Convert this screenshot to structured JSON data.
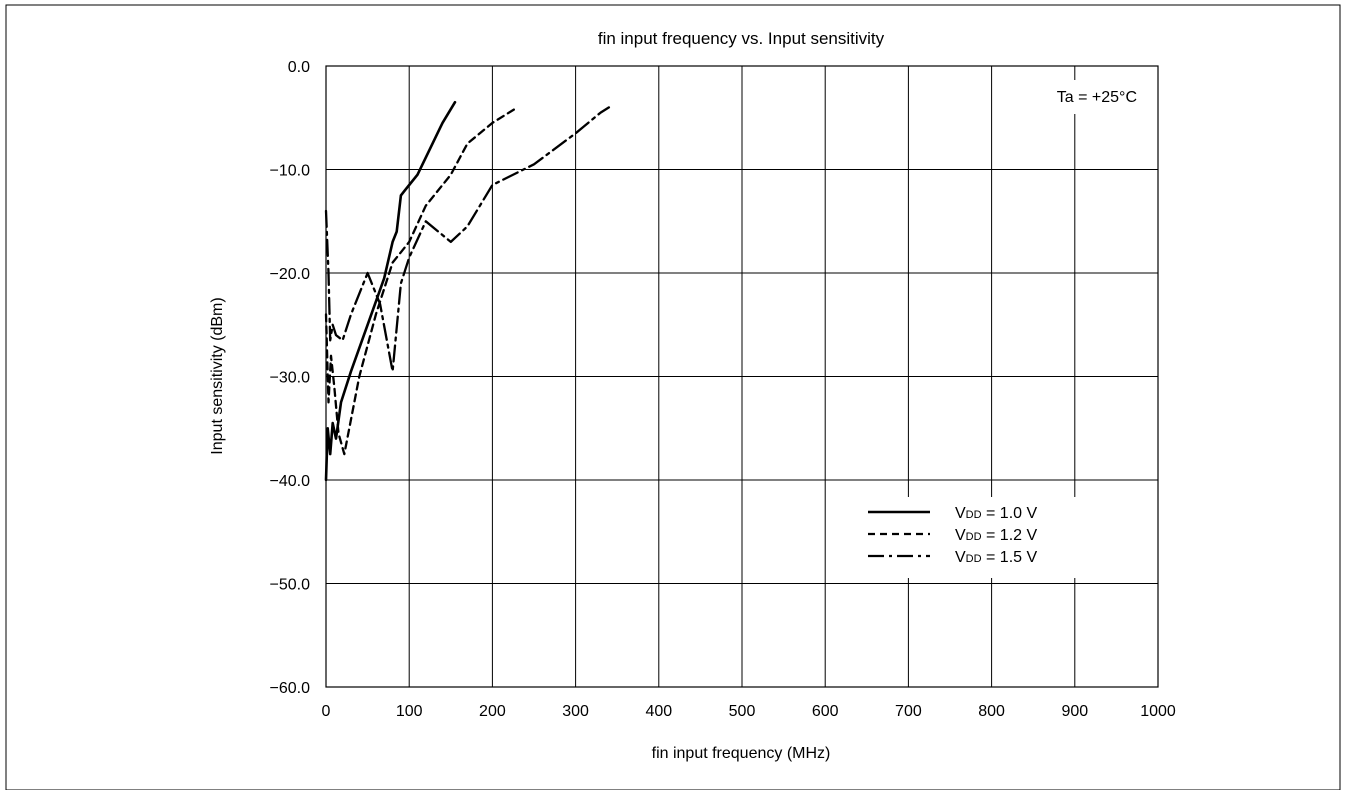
{
  "chart_data": {
    "type": "line",
    "title": "fin input frequency vs. Input sensitivity",
    "xlabel": "fin input frequency (MHz)",
    "ylabel": "Input sensitivity (dBm)",
    "xlim": [
      0,
      1000
    ],
    "ylim": [
      -60,
      0
    ],
    "x_ticks": [
      "0",
      "100",
      "200",
      "300",
      "400",
      "500",
      "600",
      "700",
      "800",
      "900",
      "1000"
    ],
    "y_ticks": [
      "0.0",
      "−10.0",
      "−20.0",
      "−30.0",
      "−40.0",
      "−50.0",
      "−60.0"
    ],
    "grid": true,
    "annotation": "Ta = +25°C",
    "legend_position": "lower-right",
    "series": [
      {
        "name": "VDD = 1.0 V",
        "name_main": "V",
        "name_sub": "DD",
        "name_rest": " = 1.0 V",
        "dash": "solid",
        "points": [
          [
            0,
            -40.0
          ],
          [
            2,
            -35.0
          ],
          [
            5,
            -37.5
          ],
          [
            8,
            -34.5
          ],
          [
            12,
            -36.0
          ],
          [
            18,
            -32.5
          ],
          [
            30,
            -29.5
          ],
          [
            50,
            -25.0
          ],
          [
            70,
            -20.5
          ],
          [
            80,
            -17.0
          ],
          [
            85,
            -16.0
          ],
          [
            90,
            -12.5
          ],
          [
            95,
            -12.0
          ],
          [
            100,
            -11.5
          ],
          [
            110,
            -10.5
          ],
          [
            125,
            -8.0
          ],
          [
            140,
            -5.5
          ],
          [
            155,
            -3.5
          ]
        ]
      },
      {
        "name": "VDD = 1.2 V",
        "name_main": "V",
        "name_sub": "DD",
        "name_rest": " = 1.2 V",
        "dash": "dashed",
        "points": [
          [
            0,
            -24.0
          ],
          [
            3,
            -32.5
          ],
          [
            6,
            -28.0
          ],
          [
            10,
            -31.0
          ],
          [
            15,
            -35.5
          ],
          [
            22,
            -37.5
          ],
          [
            40,
            -30.0
          ],
          [
            60,
            -24.0
          ],
          [
            80,
            -19.0
          ],
          [
            100,
            -17.0
          ],
          [
            120,
            -13.5
          ],
          [
            150,
            -10.5
          ],
          [
            170,
            -7.5
          ],
          [
            200,
            -5.5
          ],
          [
            230,
            -4.0
          ]
        ]
      },
      {
        "name": "VDD = 1.5 V",
        "name_main": "V",
        "name_sub": "DD",
        "name_rest": " = 1.5 V",
        "dash": "dashdot",
        "points": [
          [
            0,
            -14.0
          ],
          [
            3,
            -20.0
          ],
          [
            5,
            -26.5
          ],
          [
            8,
            -25.0
          ],
          [
            12,
            -26.0
          ],
          [
            20,
            -26.5
          ],
          [
            30,
            -24.0
          ],
          [
            50,
            -20.0
          ],
          [
            65,
            -23.0
          ],
          [
            80,
            -29.5
          ],
          [
            90,
            -21.0
          ],
          [
            100,
            -18.5
          ],
          [
            120,
            -15.0
          ],
          [
            150,
            -17.0
          ],
          [
            170,
            -15.5
          ],
          [
            200,
            -11.5
          ],
          [
            250,
            -9.5
          ],
          [
            300,
            -6.5
          ],
          [
            330,
            -4.5
          ],
          [
            340,
            -4.0
          ]
        ]
      }
    ]
  }
}
